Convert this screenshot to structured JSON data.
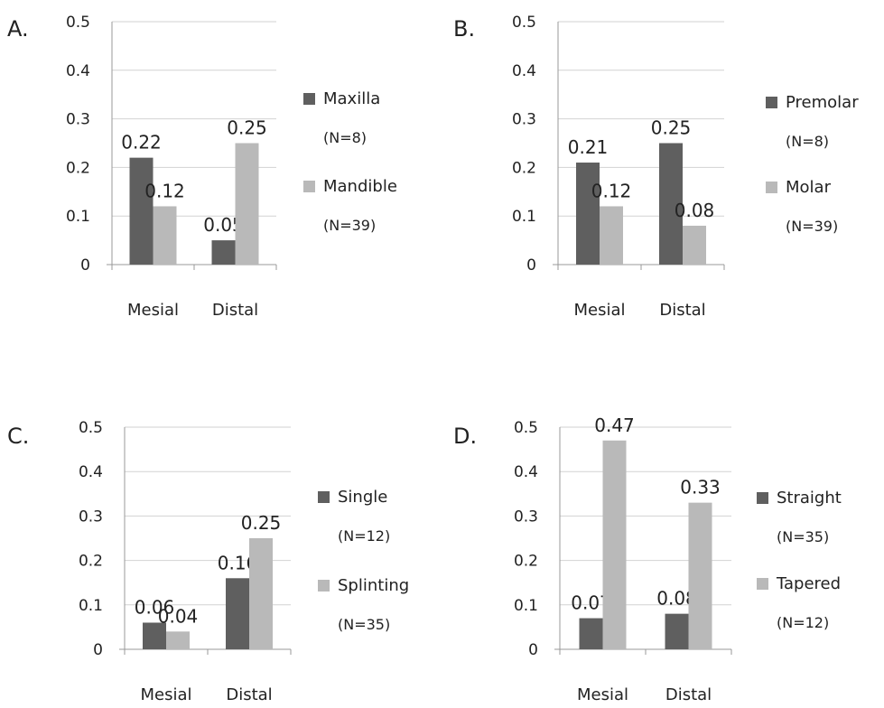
{
  "colors": {
    "dark_series": "#5f5f5f",
    "light_series": "#b9b9b9",
    "gridline": "#d2d2d2",
    "axis": "#999999"
  },
  "chart_data": [
    {
      "type": "bar",
      "panel": "A.",
      "categories": [
        "Mesial",
        "Distal"
      ],
      "ylim": [
        0,
        0.5
      ],
      "yticks": [
        "0",
        "0.1",
        "0.2",
        "0.3",
        "0.4",
        "0.5"
      ],
      "grid": true,
      "legend_position": "right",
      "series": [
        {
          "name": "Maxilla",
          "n_label": "(N=8)",
          "values": [
            0.22,
            0.05
          ],
          "labels": [
            "0.22",
            "0.05"
          ]
        },
        {
          "name": "Mandible",
          "n_label": "(N=39)",
          "values": [
            0.12,
            0.25
          ],
          "labels": [
            "0.12",
            "0.25"
          ]
        }
      ]
    },
    {
      "type": "bar",
      "panel": "B.",
      "categories": [
        "Mesial",
        "Distal"
      ],
      "ylim": [
        0,
        0.5
      ],
      "yticks": [
        "0",
        "0.1",
        "0.2",
        "0.3",
        "0.4",
        "0.5"
      ],
      "grid": true,
      "legend_position": "right",
      "series": [
        {
          "name": "Premolar",
          "n_label": "(N=8)",
          "values": [
            0.21,
            0.25
          ],
          "labels": [
            "0.21",
            "0.25"
          ]
        },
        {
          "name": "Molar",
          "n_label": "(N=39)",
          "values": [
            0.12,
            0.08
          ],
          "labels": [
            "0.12",
            "0.08"
          ]
        }
      ]
    },
    {
      "type": "bar",
      "panel": "C.",
      "categories": [
        "Mesial",
        "Distal"
      ],
      "ylim": [
        0,
        0.5
      ],
      "yticks": [
        "0",
        "0.1",
        "0.2",
        "0.3",
        "0.4",
        "0.5"
      ],
      "grid": true,
      "legend_position": "right",
      "series": [
        {
          "name": "Single",
          "n_label": "(N=12)",
          "values": [
            0.06,
            0.16
          ],
          "labels": [
            "0.06",
            "0.16"
          ]
        },
        {
          "name": "Splinting",
          "n_label": "(N=35)",
          "values": [
            0.04,
            0.25
          ],
          "labels": [
            "0.04",
            "0.25"
          ]
        }
      ]
    },
    {
      "type": "bar",
      "panel": "D.",
      "categories": [
        "Mesial",
        "Distal"
      ],
      "ylim": [
        0,
        0.5
      ],
      "yticks": [
        "0",
        "0.1",
        "0.2",
        "0.3",
        "0.4",
        "0.5"
      ],
      "grid": true,
      "legend_position": "right",
      "series": [
        {
          "name": "Straight",
          "n_label": "(N=35)",
          "values": [
            0.07,
            0.08
          ],
          "labels": [
            "0.07",
            "0.08"
          ]
        },
        {
          "name": "Tapered",
          "n_label": "(N=12)",
          "values": [
            0.47,
            0.33
          ],
          "labels": [
            "0.47",
            "0.33"
          ]
        }
      ]
    }
  ]
}
